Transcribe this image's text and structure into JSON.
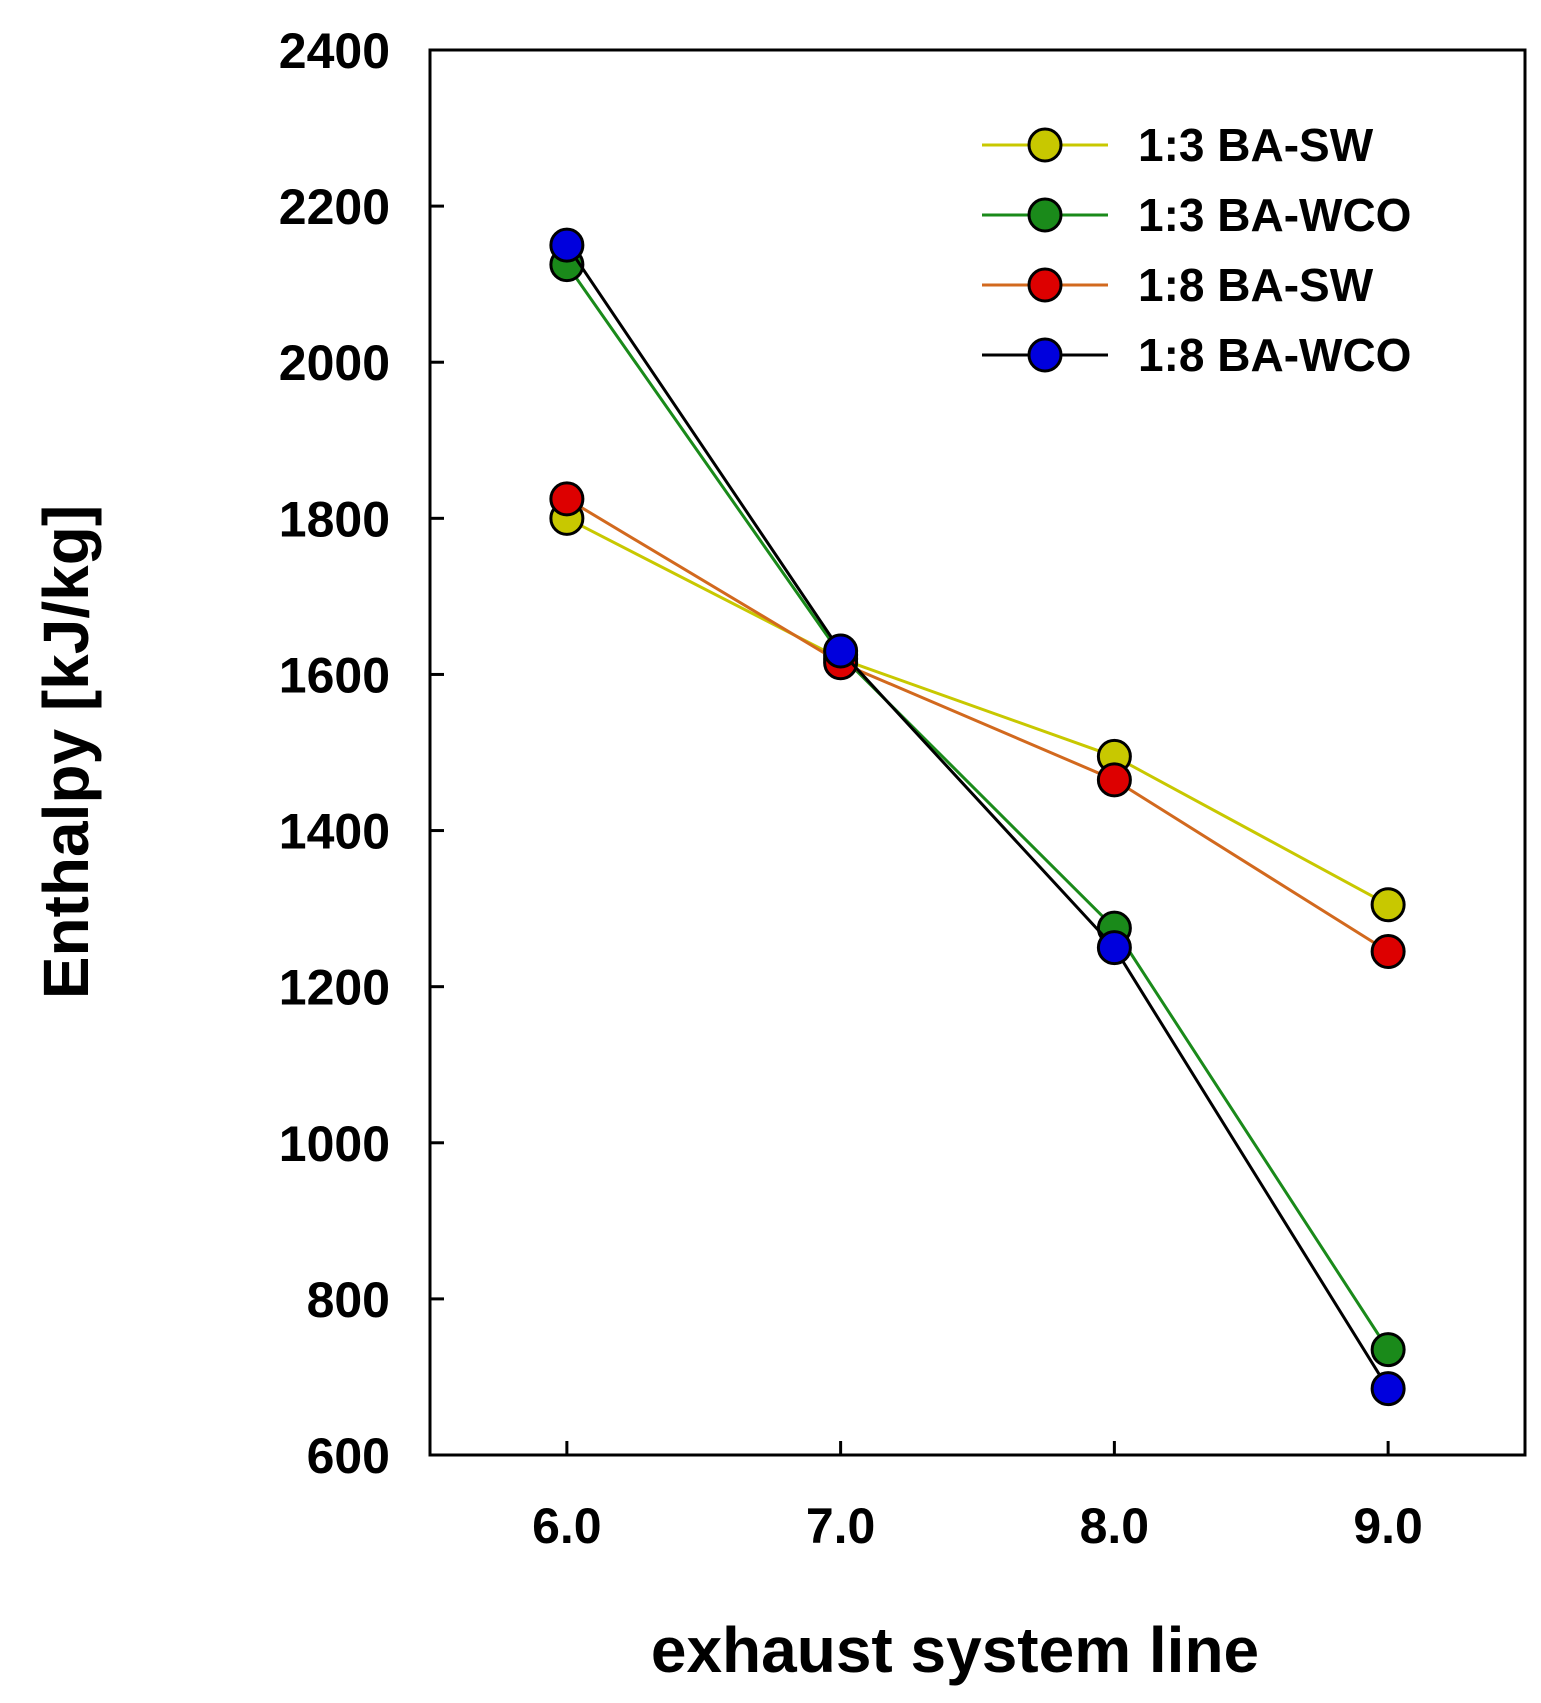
{
  "chart_data": {
    "type": "line",
    "title": "",
    "xlabel": "exhaust system line",
    "ylabel": "Enthalpy [kJ/kg]",
    "x": [
      6.0,
      7.0,
      8.0,
      9.0
    ],
    "xticks": [
      "6.0",
      "7.0",
      "8.0",
      "9.0"
    ],
    "xlim": [
      5.5,
      9.5
    ],
    "ylim": [
      600,
      2400
    ],
    "yticks": [
      "600",
      "800",
      "1000",
      "1200",
      "1400",
      "1600",
      "1800",
      "2000",
      "2200",
      "2400"
    ],
    "grid": false,
    "legend_position": "top-right",
    "series": [
      {
        "name": "1:3 BA-SW",
        "color": "#c8c800",
        "values": [
          1800,
          1620,
          1495,
          1305
        ]
      },
      {
        "name": "1:3 BA-WCO",
        "color": "#1a8a1a",
        "values": [
          2125,
          1625,
          1275,
          735
        ]
      },
      {
        "name": "1:8 BA-SW",
        "color": "#d2691e",
        "marker_color": "#dd0000",
        "values": [
          1825,
          1615,
          1465,
          1245
        ]
      },
      {
        "name": "1:8 BA-WCO",
        "color": "#000000",
        "marker_color": "#0000dd",
        "values": [
          2150,
          1630,
          1250,
          685
        ]
      }
    ]
  }
}
